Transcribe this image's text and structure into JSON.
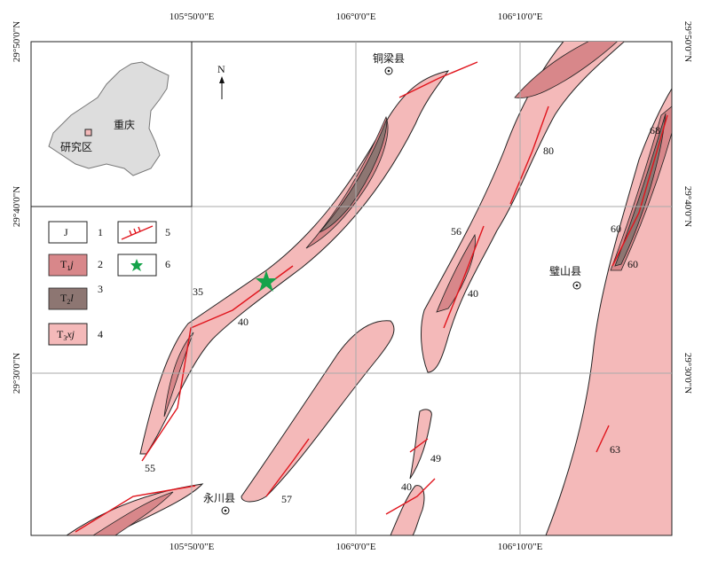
{
  "coordinates": {
    "top": [
      "105°50'0\"E",
      "106°0'0\"E",
      "106°10'0\"E"
    ],
    "bottom": [
      "105°50'0\"E",
      "106°0'0\"E",
      "106°10'0\"E"
    ],
    "left": [
      "29°50'0\"N",
      "29°40'0\"N",
      "29°30'0\"N"
    ],
    "right": [
      "29°50'0\"N",
      "29°40'0\"N",
      "29°30'0\"N"
    ]
  },
  "places": [
    "铜梁县",
    "璧山县",
    "永川县"
  ],
  "inset": {
    "north": "N",
    "city": "重庆",
    "area": "研究区"
  },
  "legend": [
    {
      "label": "J",
      "number": "1"
    },
    {
      "label": {
        "base": "T",
        "sub": "1",
        "rest": "j"
      },
      "number": "2"
    },
    {
      "label": {
        "base": "T",
        "sub": "2",
        "rest": "l"
      },
      "number": "3"
    },
    {
      "label": {
        "base": "T",
        "sub": "3",
        "rest": "xj"
      },
      "number": "4"
    },
    {
      "number": "5"
    },
    {
      "number": "6"
    }
  ],
  "dips": [
    35,
    40,
    55,
    57,
    49,
    40,
    56,
    40,
    80,
    68,
    60,
    60,
    63
  ]
}
